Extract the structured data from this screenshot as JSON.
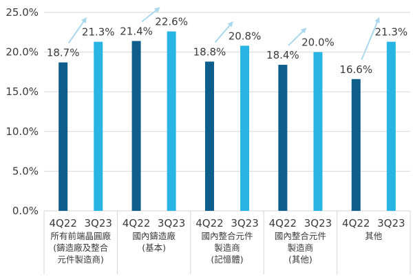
{
  "chart_data": {
    "type": "bar",
    "title": "",
    "xlabel": "",
    "ylabel": "",
    "ylim": [
      0,
      25
    ],
    "y_ticks": [
      "0.0%",
      "5.0%",
      "10.0%",
      "15.0%",
      "20.0%",
      "25.0%"
    ],
    "grid": true,
    "series_names": [
      "4Q22",
      "3Q23"
    ],
    "groups": [
      {
        "label_lines": [
          "所有前端晶圓廠",
          "(鑄造廠及整合",
          "元件製造商)"
        ],
        "values": [
          18.7,
          21.3
        ],
        "labels": [
          "18.7%",
          "21.3%"
        ]
      },
      {
        "label_lines": [
          "國內鑄造廠",
          "(基本)"
        ],
        "values": [
          21.4,
          22.6
        ],
        "labels": [
          "21.4%",
          "22.6%"
        ]
      },
      {
        "label_lines": [
          "國內整合元件",
          "製造商",
          "(記憶體)"
        ],
        "values": [
          18.8,
          20.8
        ],
        "labels": [
          "18.8%",
          "20.8%"
        ]
      },
      {
        "label_lines": [
          "國內整合元件",
          "製造商",
          "(其他)"
        ],
        "values": [
          18.4,
          20.0
        ],
        "labels": [
          "18.4%",
          "20.0%"
        ]
      },
      {
        "label_lines": [
          "其他"
        ],
        "values": [
          16.6,
          21.3
        ],
        "labels": [
          "16.6%",
          "21.3%"
        ]
      }
    ],
    "colors": {
      "dark": "#0e5e8c",
      "light": "#29b5e3",
      "arrow": "#a9d7ec",
      "grid": "#d6d6d6"
    }
  }
}
